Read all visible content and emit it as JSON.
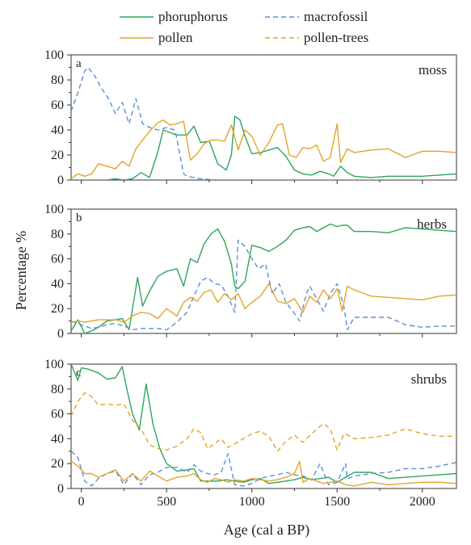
{
  "colors": {
    "phoruphorus": "#2ea55b",
    "macrofossil": "#5b8fd6",
    "pollen": "#e2a52a",
    "pollen_trees": "#e2a52a",
    "axis": "#333333"
  },
  "legend": {
    "items": [
      {
        "key": "phoruphorus",
        "label": "phoruphorus",
        "style": "solid"
      },
      {
        "key": "macrofossil",
        "label": "macrofossil",
        "style": "dashed"
      },
      {
        "key": "pollen",
        "label": "pollen",
        "style": "solid"
      },
      {
        "key": "pollen_trees",
        "label": "pollen-trees",
        "style": "dashed"
      }
    ]
  },
  "chart_data": {
    "type": "line",
    "xlabel": "Age (cal a BP)",
    "ylabel": "Percentage %",
    "xlim": [
      -60,
      2200
    ],
    "ylim": [
      0,
      100
    ],
    "x_ticks": [
      0,
      500,
      1000,
      1500,
      2000
    ],
    "y_ticks": [
      0,
      20,
      40,
      60,
      80,
      100
    ],
    "grid": false,
    "legend_position": "top",
    "panels": [
      {
        "letter": "a",
        "title": "moss",
        "series": [
          {
            "key": "phoruphorus",
            "name": "phoruphorus",
            "x": [
              -60,
              0,
              50,
              100,
              150,
              200,
              250,
              300,
              350,
              400,
              450,
              480,
              520,
              560,
              620,
              660,
              700,
              750,
              800,
              850,
              880,
              900,
              930,
              960,
              1000,
              1050,
              1100,
              1150,
              1200,
              1250,
              1300,
              1350,
              1400,
              1450,
              1480,
              1520,
              1560,
              1600,
              1700,
              1800,
              1900,
              2000,
              2100,
              2200
            ],
            "y": [
              0,
              0,
              0,
              0,
              0,
              1,
              0,
              1,
              6,
              2,
              23,
              40,
              38,
              36,
              36,
              43,
              30,
              31,
              13,
              8,
              20,
              51,
              48,
              35,
              21,
              22,
              24,
              26,
              19,
              8,
              5,
              4,
              7,
              5,
              3,
              11,
              6,
              3,
              2,
              3,
              3,
              3,
              4,
              5
            ]
          },
          {
            "key": "macrofossil",
            "name": "macrofossil",
            "x": [
              -60,
              -20,
              20,
              40,
              80,
              120,
              160,
              200,
              240,
              280,
              320,
              360,
              400,
              450,
              500,
              550,
              600,
              620,
              700,
              800,
              900,
              1000,
              1100,
              1200,
              1300,
              1400,
              1500,
              1600,
              1800,
              2000,
              2200
            ],
            "y": [
              55,
              70,
              87,
              90,
              83,
              73,
              65,
              53,
              62,
              45,
              65,
              45,
              42,
              40,
              42,
              40,
              5,
              3,
              1,
              0,
              0,
              0,
              0,
              0,
              0,
              0,
              0,
              0,
              0,
              0,
              0
            ]
          },
          {
            "key": "pollen",
            "name": "pollen",
            "x": [
              -60,
              -20,
              20,
              60,
              100,
              150,
              200,
              240,
              280,
              320,
              360,
              400,
              450,
              480,
              520,
              560,
              600,
              640,
              680,
              720,
              760,
              800,
              840,
              880,
              920,
              960,
              1000,
              1050,
              1100,
              1150,
              1180,
              1220,
              1260,
              1300,
              1340,
              1380,
              1420,
              1460,
              1500,
              1520,
              1560,
              1600,
              1700,
              1800,
              1900,
              2000,
              2100,
              2200
            ],
            "y": [
              1,
              5,
              3,
              5,
              13,
              11,
              9,
              15,
              11,
              25,
              32,
              39,
              46,
              48,
              44,
              45,
              47,
              16,
              21,
              29,
              32,
              32,
              31,
              44,
              24,
              40,
              35,
              20,
              30,
              44,
              45,
              20,
              18,
              26,
              25,
              28,
              15,
              18,
              45,
              14,
              25,
              22,
              24,
              25,
              18,
              23,
              23,
              22
            ]
          }
        ]
      },
      {
        "letter": "b",
        "title": "herbs",
        "series": [
          {
            "key": "phoruphorus",
            "name": "phoruphorus",
            "x": [
              -60,
              -20,
              20,
              60,
              100,
              150,
              200,
              240,
              280,
              330,
              360,
              400,
              450,
              500,
              560,
              600,
              640,
              680,
              720,
              760,
              800,
              840,
              880,
              900,
              920,
              960,
              1000,
              1050,
              1100,
              1150,
              1200,
              1250,
              1300,
              1340,
              1380,
              1420,
              1460,
              1500,
              1530,
              1560,
              1600,
              1700,
              1800,
              1900,
              2000,
              2100,
              2200
            ],
            "y": [
              2,
              11,
              0,
              2,
              5,
              10,
              11,
              12,
              3,
              45,
              22,
              34,
              46,
              50,
              52,
              38,
              60,
              57,
              72,
              80,
              84,
              74,
              56,
              38,
              36,
              42,
              71,
              69,
              66,
              70,
              75,
              83,
              85,
              86,
              82,
              85,
              88,
              86,
              87,
              87,
              82,
              82,
              81,
              85,
              84,
              83,
              82
            ]
          },
          {
            "key": "macrofossil",
            "name": "macrofossil",
            "x": [
              -60,
              -20,
              20,
              60,
              100,
              150,
              200,
              250,
              300,
              350,
              400,
              450,
              500,
              560,
              620,
              660,
              700,
              740,
              780,
              820,
              860,
              900,
              920,
              960,
              1000,
              1040,
              1080,
              1120,
              1160,
              1200,
              1240,
              1280,
              1320,
              1340,
              1380,
              1420,
              1460,
              1500,
              1540,
              1560,
              1600,
              1700,
              1800,
              1900,
              2000,
              2100,
              2200
            ],
            "y": [
              10,
              8,
              6,
              4,
              5,
              7,
              8,
              6,
              3,
              4,
              4,
              4,
              3,
              9,
              17,
              30,
              42,
              45,
              40,
              39,
              30,
              17,
              75,
              70,
              60,
              52,
              56,
              32,
              40,
              25,
              18,
              10,
              32,
              38,
              28,
              18,
              32,
              40,
              22,
              3,
              13,
              13,
              13,
              7,
              5,
              6,
              6
            ]
          },
          {
            "key": "pollen",
            "name": "pollen",
            "x": [
              -60,
              -20,
              20,
              60,
              100,
              150,
              200,
              250,
              300,
              350,
              400,
              450,
              500,
              560,
              600,
              640,
              680,
              720,
              760,
              800,
              840,
              880,
              920,
              960,
              1000,
              1050,
              1100,
              1150,
              1200,
              1250,
              1300,
              1340,
              1380,
              1420,
              1460,
              1500,
              1530,
              1560,
              1600,
              1700,
              1800,
              1900,
              2000,
              2100,
              2200
            ],
            "y": [
              9,
              10,
              9,
              10,
              11,
              11,
              11,
              9,
              14,
              17,
              16,
              12,
              20,
              14,
              25,
              29,
              26,
              33,
              35,
              25,
              32,
              27,
              32,
              20,
              25,
              30,
              40,
              26,
              24,
              28,
              17,
              30,
              25,
              35,
              28,
              36,
              18,
              38,
              35,
              30,
              29,
              28,
              27,
              30,
              31
            ]
          }
        ]
      },
      {
        "letter": "c",
        "title": "shrubs",
        "series": [
          {
            "key": "phoruphorus",
            "name": "phoruphorus",
            "x": [
              -60,
              -20,
              0,
              40,
              100,
              150,
              200,
              240,
              270,
              300,
              340,
              380,
              420,
              460,
              500,
              560,
              620,
              660,
              700,
              740,
              800,
              850,
              900,
              950,
              1000,
              1050,
              1100,
              1150,
              1200,
              1250,
              1300,
              1350,
              1400,
              1450,
              1500,
              1550,
              1600,
              1700,
              1800,
              1900,
              2000,
              2100,
              2200
            ],
            "y": [
              100,
              87,
              97,
              96,
              93,
              88,
              89,
              98,
              78,
              60,
              47,
              84,
              52,
              32,
              20,
              14,
              15,
              16,
              6,
              6,
              6,
              7,
              6,
              5,
              7,
              8,
              4,
              5,
              6,
              7,
              9,
              7,
              8,
              9,
              5,
              9,
              13,
              13,
              8,
              9,
              10,
              11,
              12
            ]
          },
          {
            "key": "macrofossil",
            "name": "macrofossil",
            "x": [
              -60,
              -20,
              20,
              60,
              100,
              150,
              200,
              250,
              300,
              350,
              400,
              450,
              500,
              560,
              620,
              660,
              700,
              740,
              780,
              820,
              860,
              900,
              950,
              1000,
              1050,
              1100,
              1150,
              1200,
              1250,
              1300,
              1350,
              1400,
              1450,
              1500,
              1550,
              1560,
              1600,
              1700,
              1800,
              1900,
              2000,
              2100,
              2200
            ],
            "y": [
              30,
              25,
              6,
              2,
              8,
              12,
              14,
              3,
              12,
              3,
              11,
              13,
              17,
              17,
              13,
              19,
              14,
              12,
              11,
              13,
              28,
              3,
              2,
              4,
              8,
              10,
              11,
              13,
              11,
              10,
              7,
              20,
              3,
              5,
              20,
              8,
              10,
              12,
              13,
              16,
              16,
              18,
              21
            ]
          },
          {
            "key": "pollen",
            "name": "pollen",
            "x": [
              -60,
              -20,
              20,
              60,
              100,
              150,
              200,
              250,
              300,
              350,
              400,
              450,
              500,
              560,
              620,
              660,
              700,
              740,
              780,
              820,
              860,
              900,
              950,
              1000,
              1050,
              1100,
              1150,
              1200,
              1250,
              1280,
              1300,
              1340,
              1380,
              1420,
              1460,
              1500,
              1550,
              1600,
              1700,
              1800,
              1900,
              2000,
              2100,
              2200
            ],
            "y": [
              22,
              18,
              12,
              12,
              9,
              12,
              15,
              6,
              12,
              6,
              14,
              10,
              6,
              9,
              10,
              12,
              7,
              5,
              8,
              7,
              5,
              7,
              6,
              8,
              7,
              6,
              7,
              9,
              12,
              22,
              5,
              8,
              6,
              4,
              5,
              6,
              3,
              2,
              5,
              3,
              4,
              5,
              5,
              4
            ]
          },
          {
            "key": "pollen_trees",
            "name": "pollen-trees",
            "x": [
              -60,
              -20,
              20,
              60,
              100,
              150,
              200,
              250,
              300,
              350,
              400,
              450,
              500,
              560,
              620,
              660,
              700,
              740,
              780,
              820,
              860,
              900,
              950,
              1000,
              1050,
              1100,
              1150,
              1200,
              1250,
              1300,
              1350,
              1400,
              1420,
              1460,
              1500,
              1540,
              1580,
              1600,
              1700,
              1800,
              1900,
              2000,
              2100,
              2200
            ],
            "y": [
              58,
              70,
              77,
              74,
              67,
              68,
              67,
              68,
              55,
              48,
              35,
              32,
              31,
              34,
              40,
              48,
              45,
              32,
              36,
              40,
              33,
              36,
              40,
              44,
              46,
              42,
              30,
              38,
              43,
              37,
              44,
              50,
              52,
              48,
              31,
              44,
              42,
              40,
              41,
              43,
              48,
              44,
              42,
              42
            ]
          }
        ]
      }
    ]
  }
}
